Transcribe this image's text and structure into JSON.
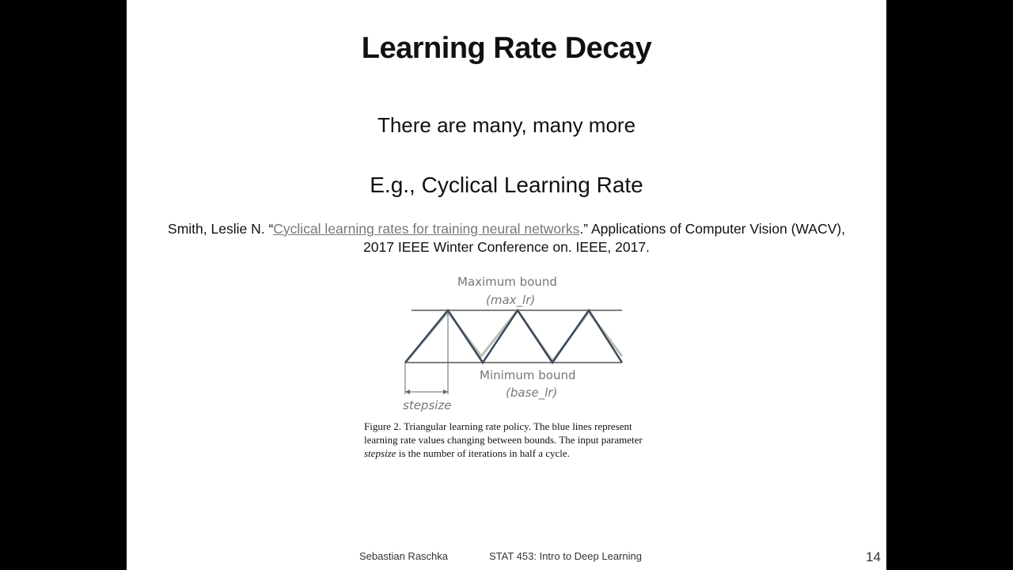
{
  "slide": {
    "title": "Learning Rate Decay",
    "subtitle": "There are many, many more",
    "example": "E.g., Cyclical Learning Rate",
    "citation": {
      "prefix": "Smith, Leslie N. “",
      "link_text": "Cyclical learning rates for training neural networks",
      "suffix": ".” Applications of Computer Vision (WACV), 2017 IEEE Winter Conference on. IEEE, 2017."
    },
    "figure": {
      "max_label": "Maximum bound",
      "max_param": "(max_lr)",
      "min_label": "Minimum bound",
      "min_param": "(base_lr)",
      "stepsize_label": "stepsize",
      "caption_part1": "Figure 2. Triangular learning rate policy. The blue lines represent learning rate values changing between bounds. The input parameter ",
      "caption_param": "stepsize",
      "caption_part2": " is the number of iterations in half a cycle."
    },
    "footer": {
      "author": "Sebastian Raschka",
      "course": "STAT 453: Intro to Deep Learning",
      "page": "14"
    }
  },
  "colors": {
    "background": "#000000",
    "slide": "#ffffff",
    "link": "#777777",
    "line_dark": "#3a4a5c",
    "line_light": "#b8b8b0"
  }
}
